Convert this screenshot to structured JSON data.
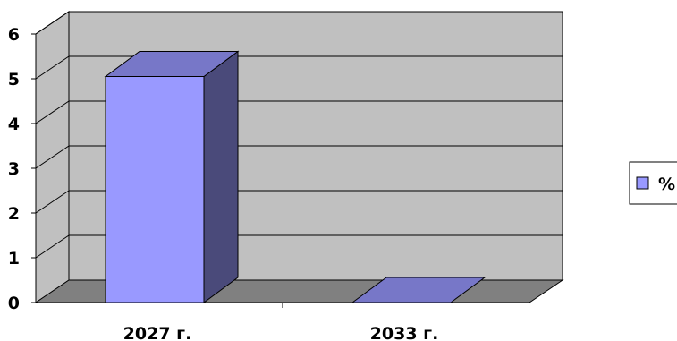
{
  "chart_data": {
    "type": "bar",
    "categories": [
      "2027 г.",
      "2033 г."
    ],
    "series": [
      {
        "name": "%",
        "values": [
          5.05,
          0
        ]
      }
    ],
    "ylim": [
      0,
      6
    ],
    "yticks": [
      "0",
      "1",
      "2",
      "3",
      "4",
      "5",
      "6"
    ],
    "grid": true,
    "legend": "right",
    "style": "3d",
    "colors": {
      "bar_front": "#9999ff",
      "bar_side": "#4a4a7a",
      "bar_top": "#7777c8",
      "wall_back": "#c0c0c0",
      "wall_side": "#c0c0c0",
      "floor": "#808080",
      "grid": "#000000"
    }
  }
}
